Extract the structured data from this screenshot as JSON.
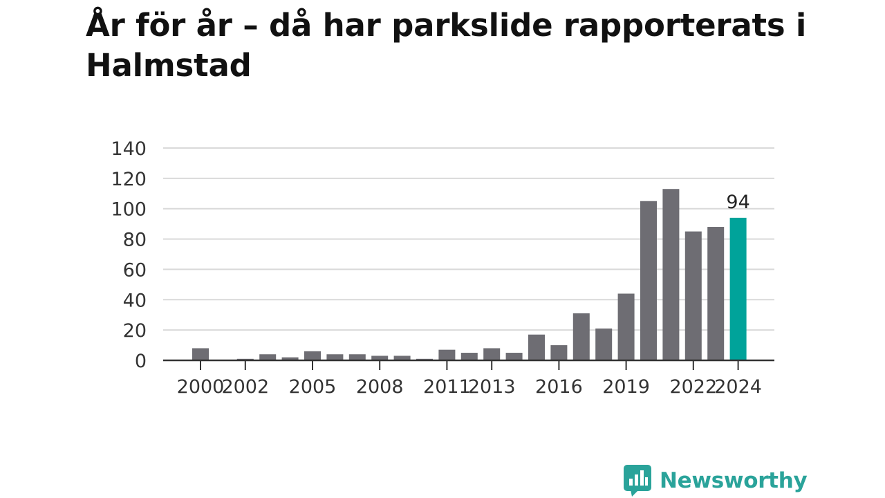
{
  "header": {
    "title": "År för år – då har parkslide rapporterats i Halmstad"
  },
  "chart_data": {
    "type": "bar",
    "categories": [
      "2000",
      "2001",
      "2002",
      "2003",
      "2004",
      "2005",
      "2006",
      "2007",
      "2008",
      "2009",
      "2010",
      "2011",
      "2012",
      "2013",
      "2014",
      "2015",
      "2016",
      "2017",
      "2018",
      "2019",
      "2020",
      "2021",
      "2022",
      "2023",
      "2024"
    ],
    "values": [
      8,
      0,
      1,
      4,
      2,
      6,
      4,
      4,
      3,
      3,
      1,
      7,
      5,
      8,
      5,
      17,
      10,
      31,
      21,
      44,
      105,
      113,
      85,
      88,
      94
    ],
    "x_tick_labels": [
      "2000",
      "2002",
      "2005",
      "2008",
      "2011",
      "2013",
      "2016",
      "2019",
      "2022",
      "2024"
    ],
    "y_ticks": [
      0,
      20,
      40,
      60,
      80,
      100,
      120,
      140
    ],
    "ylim": [
      0,
      140
    ],
    "grid": true,
    "highlight": {
      "category": "2024",
      "label": "94"
    },
    "colors": {
      "bar": "#6e6d73",
      "highlight": "#00a39a",
      "grid": "#d9d9d9",
      "axis": "#333333"
    }
  },
  "footer": {
    "brand": "Newsworthy",
    "brand_color": "#2aa39a",
    "logo_icon": "bar-chart-speech-bubble-icon"
  }
}
